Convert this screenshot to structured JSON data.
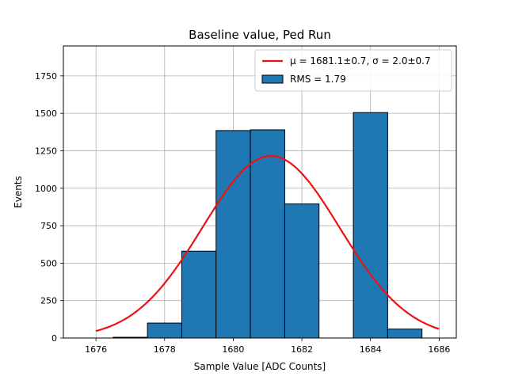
{
  "chart_data": {
    "type": "histogram",
    "title": "Baseline value, Ped Run",
    "xlabel": "Sample Value [ADC Counts]",
    "ylabel": "Events",
    "xlim": [
      1675.05,
      1686.5
    ],
    "ylim": [
      0,
      1950
    ],
    "x_ticks": [
      1676,
      1678,
      1680,
      1682,
      1684,
      1686
    ],
    "y_ticks": [
      0,
      250,
      500,
      750,
      1000,
      1250,
      1500,
      1750
    ],
    "grid": true,
    "legend_position": "top-right",
    "bars": [
      {
        "left": 1676.5,
        "right": 1677.5,
        "value": 5
      },
      {
        "left": 1677.5,
        "right": 1678.5,
        "value": 100
      },
      {
        "left": 1678.5,
        "right": 1679.5,
        "value": 580
      },
      {
        "left": 1679.5,
        "right": 1680.5,
        "value": 1385
      },
      {
        "left": 1680.5,
        "right": 1681.5,
        "value": 1390
      },
      {
        "left": 1681.5,
        "right": 1682.5,
        "value": 895
      },
      {
        "left": 1682.5,
        "right": 1683.5,
        "value": 0
      },
      {
        "left": 1683.5,
        "right": 1684.5,
        "value": 1505
      },
      {
        "left": 1684.5,
        "right": 1685.5,
        "value": 60
      }
    ],
    "fit": {
      "type": "gaussian",
      "mu": 1681.1,
      "sigma": 2.0,
      "amplitude": 1215,
      "x_range": [
        1676,
        1686
      ]
    },
    "legend": [
      {
        "kind": "line",
        "label": "μ = 1681.1±0.7, σ = 2.0±0.7"
      },
      {
        "kind": "patch",
        "label": "RMS = 1.79"
      }
    ],
    "colors": {
      "bar_fill": "#1f77b4",
      "bar_edge": "#000000",
      "fit_line": "#ee1111",
      "grid": "#b0b0b0"
    }
  }
}
